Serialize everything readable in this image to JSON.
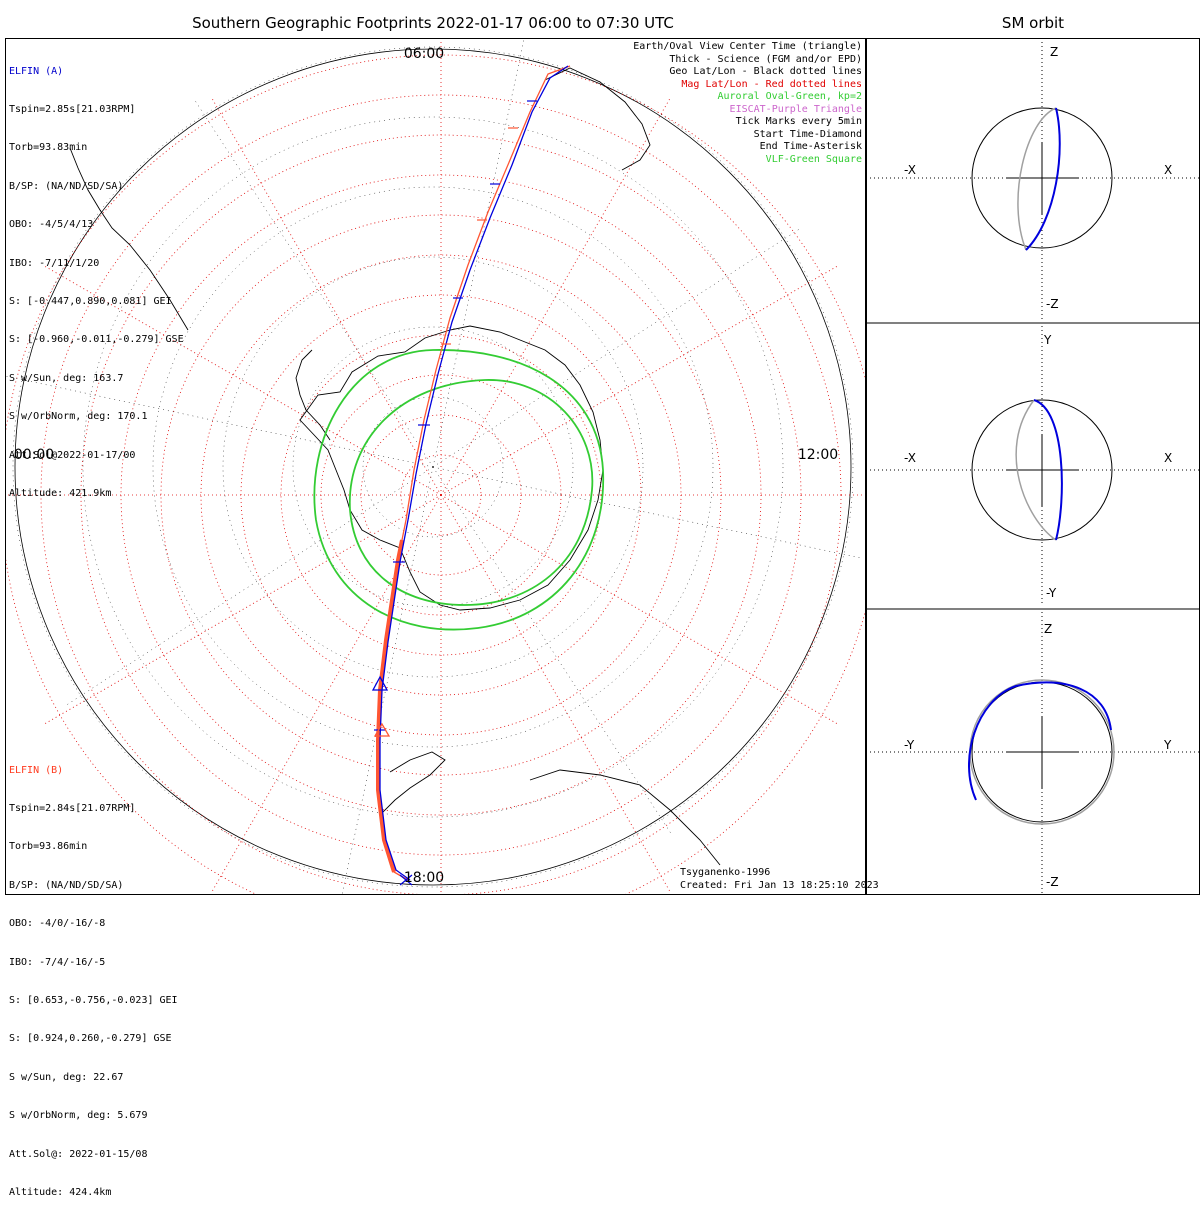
{
  "title": "Southern Geographic Footprints 2022-01-17 06:00 to 07:30 UTC",
  "sm_title": "SM orbit",
  "time_labels": {
    "top": "06:00",
    "left": "00:00",
    "right": "12:00",
    "bottom": "18:00"
  },
  "elfin_a": {
    "header": "ELFIN (A)",
    "lines": [
      "Tspin=2.85s[21.03RPM]",
      "Torb=93.83min",
      "B/SP: (NA/ND/SD/SA)",
      "OBO: -4/5/4/13",
      "IBO: -7/11/1/20",
      "S: [-0.447,0.890,0.081] GEI",
      "S: [-0.960,-0.011,-0.279] GSE",
      "S w/Sun, deg: 163.7",
      "S w/OrbNorm, deg: 170.1",
      "Att.Sol@2022-01-17/00",
      "Altitude: 421.9km"
    ]
  },
  "elfin_b": {
    "header": "ELFIN (B)",
    "lines": [
      "Tspin=2.84s[21.07RPM]",
      "Torb=93.86min",
      "B/SP: (NA/ND/SD/SA)",
      "OBO: -4/0/-16/-8",
      "IBO: -7/4/-16/-5",
      "S: [0.653,-0.756,-0.023] GEI",
      "S: [0.924,0.260,-0.279] GSE",
      "S w/Sun, deg: 22.67",
      "S w/OrbNorm, deg: 5.679",
      "Att.Sol@: 2022-01-15/08",
      "Altitude: 424.4km"
    ]
  },
  "legend": [
    {
      "text": "Earth/Oval View Center Time (triangle)",
      "color": "#000000"
    },
    {
      "text": "Thick - Science (FGM and/or EPD)",
      "color": "#000000"
    },
    {
      "text": "Geo Lat/Lon - Black dotted lines",
      "color": "#000000"
    },
    {
      "text": "Mag Lat/Lon - Red dotted lines",
      "color": "#e00000"
    },
    {
      "text": "Auroral Oval-Green, kp=2",
      "color": "#33cc33"
    },
    {
      "text": "EISCAT-Purple Triangle",
      "color": "#cc66cc"
    },
    {
      "text": "Tick Marks every 5min",
      "color": "#000000"
    },
    {
      "text": "Start Time-Diamond",
      "color": "#000000"
    },
    {
      "text": "End Time-Asterisk",
      "color": "#000000"
    },
    {
      "text": "VLF-Green Square",
      "color": "#33cc33"
    }
  ],
  "footer": {
    "model": "Tsyganenko-1996",
    "created": "Created: Fri Jan 13 18:25:10 2023"
  },
  "sm_panels": [
    {
      "top": "Z",
      "bottom": "-Z",
      "left": "-X",
      "right": "X"
    },
    {
      "top": "Y",
      "bottom": "-Y",
      "left": "-X",
      "right": "X"
    },
    {
      "top": "Z",
      "bottom": "-Z",
      "left": "-Y",
      "right": "Y"
    }
  ],
  "colors": {
    "elfin_a": "#0000dd",
    "elfin_b": "#ff5533",
    "oval": "#33cc33",
    "mag_grid": "#e00000",
    "geo_grid": "#000000",
    "orbit_gray": "#a0a0a0"
  }
}
